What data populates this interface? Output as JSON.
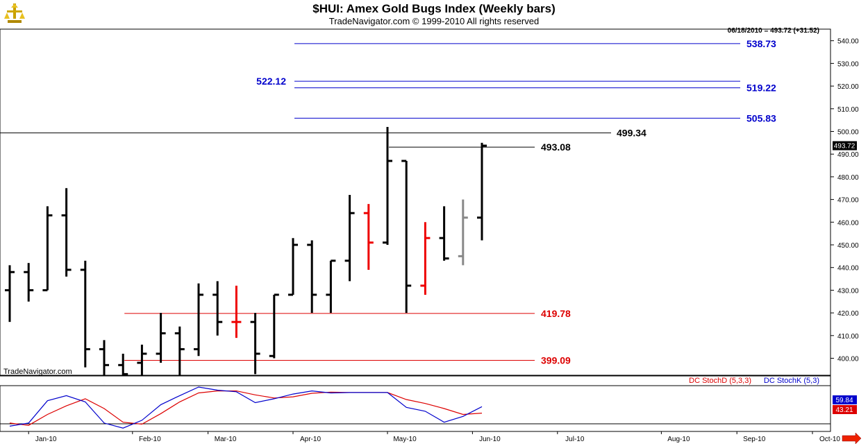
{
  "header": {
    "title": "$HUI:  Amex Gold Bugs Index  (Weekly bars)",
    "subtitle": "TradeNavigator.com © 1999-2010 All rights reserved"
  },
  "status": {
    "quote": "06/18/2010 = 493.72 (+31.52)",
    "last_price": "493.72"
  },
  "watermark": "TradeNavigator.com",
  "indicator": {
    "legend_d": "DC StochD (5,3,3)",
    "legend_k": "DC StochK (5,3)",
    "value_k": "59.84",
    "value_d": "43.21",
    "color_k": "#0000cc",
    "color_d": "#dd0000"
  },
  "chart_data": {
    "type": "ohlc",
    "y_axis": {
      "range": [
        392,
        546
      ],
      "ticks": [
        "400.00",
        "410.00",
        "420.00",
        "430.00",
        "440.00",
        "450.00",
        "460.00",
        "470.00",
        "480.00",
        "490.00",
        "500.00",
        "510.00",
        "520.00",
        "530.00",
        "540.00"
      ]
    },
    "x_axis": {
      "labels": [
        "Jan-10",
        "Feb-10",
        "Mar-10",
        "Apr-10",
        "May-10",
        "Jun-10",
        "Jul-10",
        "Aug-10",
        "Sep-10",
        "Oct-10"
      ],
      "label_bar_index": [
        1,
        6.5,
        10.5,
        15,
        20,
        24.5,
        29,
        34.5,
        38.5,
        42.5
      ]
    },
    "bars": [
      {
        "o": 430,
        "h": 441,
        "l": 416,
        "c": 438,
        "color": "black"
      },
      {
        "o": 438,
        "h": 442,
        "l": 425,
        "c": 430,
        "color": "black"
      },
      {
        "o": 430,
        "h": 467,
        "l": 430,
        "c": 463,
        "color": "black"
      },
      {
        "o": 463,
        "h": 475,
        "l": 436,
        "c": 439,
        "color": "black"
      },
      {
        "o": 439,
        "h": 443,
        "l": 396,
        "c": 404,
        "color": "black"
      },
      {
        "o": 404,
        "h": 408,
        "l": 392,
        "c": 397,
        "color": "black"
      },
      {
        "o": 397,
        "h": 402,
        "l": 392,
        "c": 393,
        "color": "black"
      },
      {
        "o": 398,
        "h": 406,
        "l": 392,
        "c": 402,
        "color": "black"
      },
      {
        "o": 402,
        "h": 420,
        "l": 398,
        "c": 411,
        "color": "black"
      },
      {
        "o": 411,
        "h": 414,
        "l": 392,
        "c": 404,
        "color": "black"
      },
      {
        "o": 404,
        "h": 433,
        "l": 401,
        "c": 428,
        "color": "black"
      },
      {
        "o": 428,
        "h": 434,
        "l": 410,
        "c": 416,
        "color": "black"
      },
      {
        "o": 416,
        "h": 432,
        "l": 409,
        "c": 416,
        "color": "red"
      },
      {
        "o": 416,
        "h": 420,
        "l": 393,
        "c": 402,
        "color": "black"
      },
      {
        "o": 401,
        "h": 428,
        "l": 400,
        "c": 428,
        "color": "black"
      },
      {
        "o": 428,
        "h": 453,
        "l": 428,
        "c": 450,
        "color": "black"
      },
      {
        "o": 450,
        "h": 452,
        "l": 420,
        "c": 428,
        "color": "black"
      },
      {
        "o": 428,
        "h": 443,
        "l": 420,
        "c": 443,
        "color": "black"
      },
      {
        "o": 443,
        "h": 472,
        "l": 434,
        "c": 464,
        "color": "black"
      },
      {
        "o": 464,
        "h": 468,
        "l": 439,
        "c": 451,
        "color": "red"
      },
      {
        "o": 451,
        "h": 502,
        "l": 450,
        "c": 487,
        "color": "black"
      },
      {
        "o": 487,
        "h": 487,
        "l": 420,
        "c": 432,
        "color": "black"
      },
      {
        "o": 432,
        "h": 460,
        "l": 428,
        "c": 453,
        "color": "red"
      },
      {
        "o": 453,
        "h": 467,
        "l": 443,
        "c": 444,
        "color": "black"
      },
      {
        "o": 445,
        "h": 470,
        "l": 441,
        "c": 462,
        "color": "gray"
      },
      {
        "o": 462,
        "h": 495,
        "l": 452,
        "c": 493.72,
        "color": "black"
      }
    ],
    "levels": [
      {
        "value": 538.73,
        "label": "538.73",
        "color": "#0000cc",
        "from_bar": 15,
        "label_side": "right"
      },
      {
        "value": 522.12,
        "label": "522.12",
        "color": "#0000cc",
        "from_bar": 15,
        "label_side": "left"
      },
      {
        "value": 519.22,
        "label": "519.22",
        "color": "#0000cc",
        "from_bar": 15,
        "label_side": "right"
      },
      {
        "value": 505.83,
        "label": "505.83",
        "color": "#0000cc",
        "from_bar": 15,
        "label_side": "right"
      },
      {
        "value": 499.34,
        "label": "499.34",
        "color": "#000000",
        "from_bar": -1,
        "label_side": "right"
      },
      {
        "value": 493.08,
        "label": "493.08",
        "color": "#000000",
        "from_bar": 20,
        "label_side": "right"
      },
      {
        "value": 419.78,
        "label": "419.78",
        "color": "#dd0000",
        "from_bar": 6,
        "label_side": "right"
      },
      {
        "value": 399.09,
        "label": "399.09",
        "color": "#dd0000",
        "from_bar": 6,
        "label_side": "right"
      }
    ],
    "stoch": {
      "range": [
        0,
        100
      ],
      "k_values": [
        10,
        18,
        75,
        88,
        72,
        18,
        5,
        25,
        65,
        88,
        110,
        102,
        98,
        70,
        80,
        92,
        100,
        95,
        96,
        96,
        96,
        58,
        48,
        20,
        35,
        59.84
      ],
      "d_values": [
        18,
        12,
        40,
        62,
        80,
        55,
        20,
        15,
        42,
        72,
        95,
        100,
        100,
        90,
        82,
        85,
        94,
        97,
        96,
        96,
        96,
        78,
        68,
        55,
        40,
        43.21
      ]
    }
  }
}
